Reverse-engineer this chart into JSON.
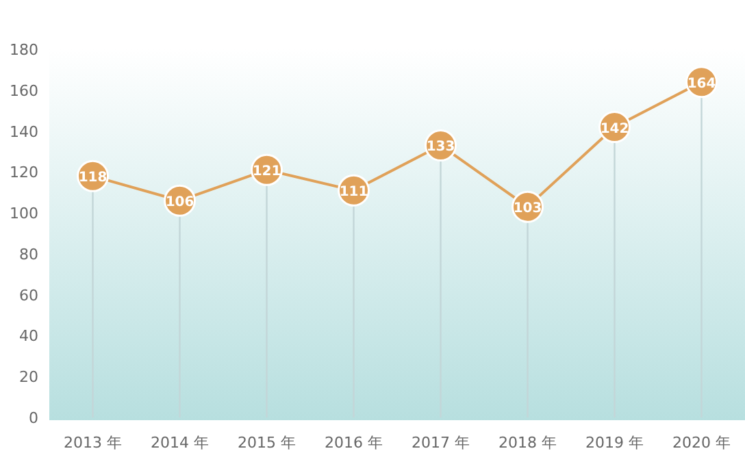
{
  "chart_data": {
    "type": "line",
    "categories": [
      "2013 年",
      "2014 年",
      "2015 年",
      "2016 年",
      "2017 年",
      "2018 年",
      "2019 年",
      "2020 年"
    ],
    "series": [
      {
        "color": "#e0a159",
        "values": [
          118,
          106,
          121,
          111,
          133,
          103,
          142,
          164
        ]
      }
    ],
    "ylim": [
      0,
      180
    ],
    "yticks": [
      0,
      20,
      40,
      60,
      80,
      100,
      120,
      140,
      160,
      180
    ],
    "marker": "circle",
    "data_labels": true,
    "grid": "x"
  }
}
